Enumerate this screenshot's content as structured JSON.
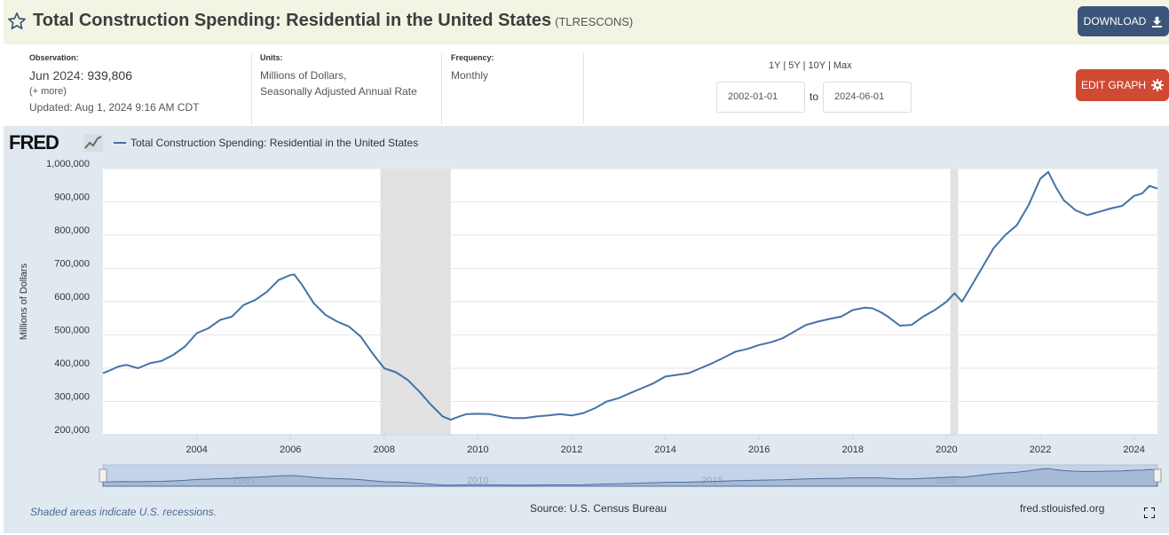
{
  "header": {
    "title": "Total Construction Spending: Residential in the United States",
    "series_id": "(TLRESCONS)",
    "download_label": "DOWNLOAD"
  },
  "meta": {
    "observation_label": "Observation:",
    "observation_date": "Jun 2024:",
    "observation_value": "939,806",
    "more_label": "(+ more)",
    "updated": "Updated: Aug 1, 2024 9:16 AM CDT",
    "units_label": "Units:",
    "units_line1": "Millions of Dollars,",
    "units_line2": "Seasonally Adjusted Annual Rate",
    "frequency_label": "Frequency:",
    "frequency_value": "Monthly"
  },
  "controls": {
    "range_1y": "1Y",
    "range_5y": "5Y",
    "range_10y": "10Y",
    "range_max": "Max",
    "separator": "|",
    "start_date": "2002-01-01",
    "to_label": "to",
    "end_date": "2024-06-01",
    "edit_label": "EDIT GRAPH"
  },
  "chart_header": {
    "logo": "FRED",
    "legend": "Total Construction Spending: Residential in the United States"
  },
  "footer": {
    "recession_note": "Shaded areas indicate U.S. recessions.",
    "source": "Source: U.S. Census Bureau",
    "site": "fred.stlouisfed.org"
  },
  "colors": {
    "line": "#4572a7",
    "recession": "#e1e1e1",
    "panel": "#e1e9f0",
    "download": "#3a5579",
    "edit": "#cf4a32"
  },
  "chart_data": {
    "type": "line",
    "ylabel": "Millions of Dollars",
    "ylim": [
      200000,
      1000000
    ],
    "xlim": [
      2002.0,
      2024.5
    ],
    "y_ticks": [
      "200,000",
      "300,000",
      "400,000",
      "500,000",
      "600,000",
      "700,000",
      "800,000",
      "900,000",
      "1,000,000"
    ],
    "y_tick_values": [
      200000,
      300000,
      400000,
      500000,
      600000,
      700000,
      800000,
      900000,
      1000000
    ],
    "x_ticks": [
      "2004",
      "2006",
      "2008",
      "2010",
      "2012",
      "2014",
      "2016",
      "2018",
      "2020",
      "2022",
      "2024"
    ],
    "x_tick_values": [
      2004,
      2006,
      2008,
      2010,
      2012,
      2014,
      2016,
      2018,
      2020,
      2022,
      2024
    ],
    "navigator_labels": [
      "2005",
      "2010",
      "2015",
      "2020"
    ],
    "navigator_label_values": [
      2005,
      2010,
      2015,
      2020
    ],
    "recessions": [
      [
        2007.92,
        2009.42
      ],
      [
        2020.08,
        2020.25
      ]
    ],
    "grid": true,
    "legend_position": "top-left",
    "series": [
      {
        "name": "Total Construction Spending: Residential in the United States",
        "x": [
          2002.0,
          2002.17,
          2002.33,
          2002.5,
          2002.75,
          2003.0,
          2003.25,
          2003.5,
          2003.75,
          2004.0,
          2004.25,
          2004.5,
          2004.75,
          2005.0,
          2005.25,
          2005.5,
          2005.75,
          2006.0,
          2006.08,
          2006.25,
          2006.5,
          2006.75,
          2007.0,
          2007.25,
          2007.5,
          2007.75,
          2008.0,
          2008.25,
          2008.5,
          2008.75,
          2009.0,
          2009.25,
          2009.42,
          2009.6,
          2009.75,
          2010.0,
          2010.25,
          2010.5,
          2010.75,
          2011.0,
          2011.25,
          2011.5,
          2011.75,
          2012.0,
          2012.25,
          2012.5,
          2012.75,
          2013.0,
          2013.25,
          2013.5,
          2013.75,
          2014.0,
          2014.25,
          2014.5,
          2014.75,
          2015.0,
          2015.25,
          2015.5,
          2015.75,
          2016.0,
          2016.25,
          2016.5,
          2016.75,
          2017.0,
          2017.25,
          2017.5,
          2017.75,
          2018.0,
          2018.25,
          2018.42,
          2018.6,
          2018.75,
          2019.0,
          2019.25,
          2019.5,
          2019.75,
          2020.0,
          2020.17,
          2020.33,
          2020.5,
          2020.75,
          2021.0,
          2021.25,
          2021.5,
          2021.75,
          2022.0,
          2022.17,
          2022.33,
          2022.5,
          2022.75,
          2023.0,
          2023.25,
          2023.5,
          2023.75,
          2024.0,
          2024.17,
          2024.33,
          2024.5
        ],
        "values": [
          385000,
          395000,
          405000,
          410000,
          400000,
          415000,
          422000,
          440000,
          465000,
          505000,
          520000,
          545000,
          555000,
          590000,
          605000,
          630000,
          665000,
          680000,
          682000,
          650000,
          595000,
          560000,
          540000,
          525000,
          495000,
          445000,
          400000,
          388000,
          365000,
          330000,
          290000,
          255000,
          245000,
          255000,
          262000,
          263000,
          262000,
          255000,
          250000,
          250000,
          255000,
          258000,
          262000,
          258000,
          265000,
          280000,
          300000,
          310000,
          325000,
          340000,
          355000,
          375000,
          380000,
          385000,
          400000,
          415000,
          432000,
          450000,
          458000,
          470000,
          478000,
          490000,
          510000,
          530000,
          540000,
          548000,
          555000,
          575000,
          582000,
          580000,
          568000,
          555000,
          528000,
          530000,
          555000,
          575000,
          600000,
          625000,
          600000,
          640000,
          700000,
          760000,
          800000,
          830000,
          890000,
          970000,
          990000,
          945000,
          905000,
          875000,
          860000,
          870000,
          880000,
          888000,
          918000,
          925000,
          948000,
          939806
        ]
      }
    ]
  }
}
